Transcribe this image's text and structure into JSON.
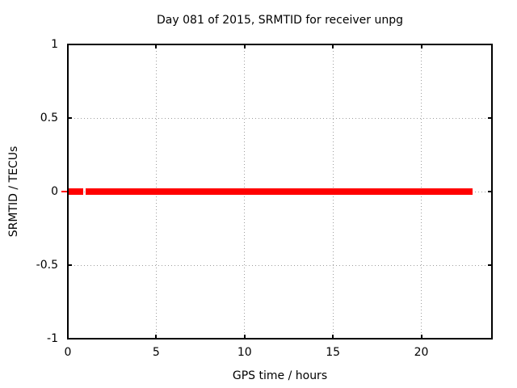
{
  "chart_data": {
    "type": "line",
    "title": "Day 081 of 2015, SRMTID for receiver unpg",
    "xlabel": "GPS time / hours",
    "ylabel": "SRMTID / TECUs",
    "xlim": [
      0,
      24
    ],
    "ylim": [
      -1,
      1
    ],
    "xticks": [
      0,
      5,
      10,
      15,
      20
    ],
    "yticks": [
      -1,
      -0.5,
      0,
      0.5,
      1
    ],
    "grid": true,
    "legend": "none",
    "colors": {
      "series": "#ff0000",
      "border": "#000000",
      "grid": "#9e9e9e",
      "text": "#000000",
      "background": "#ffffff"
    },
    "series": [
      {
        "name": "SRMTID",
        "color": "#ff0000",
        "style": "thick horizontal line at zero",
        "segments": [
          {
            "x0": -0.35,
            "x1": 0.1,
            "y": 0,
            "lw": 2
          },
          {
            "x0": 0.05,
            "x1": 0.87,
            "y": 0,
            "lw": 8
          },
          {
            "x0": 1.0,
            "x1": 22.9,
            "y": 0,
            "lw": 8
          }
        ]
      }
    ]
  }
}
